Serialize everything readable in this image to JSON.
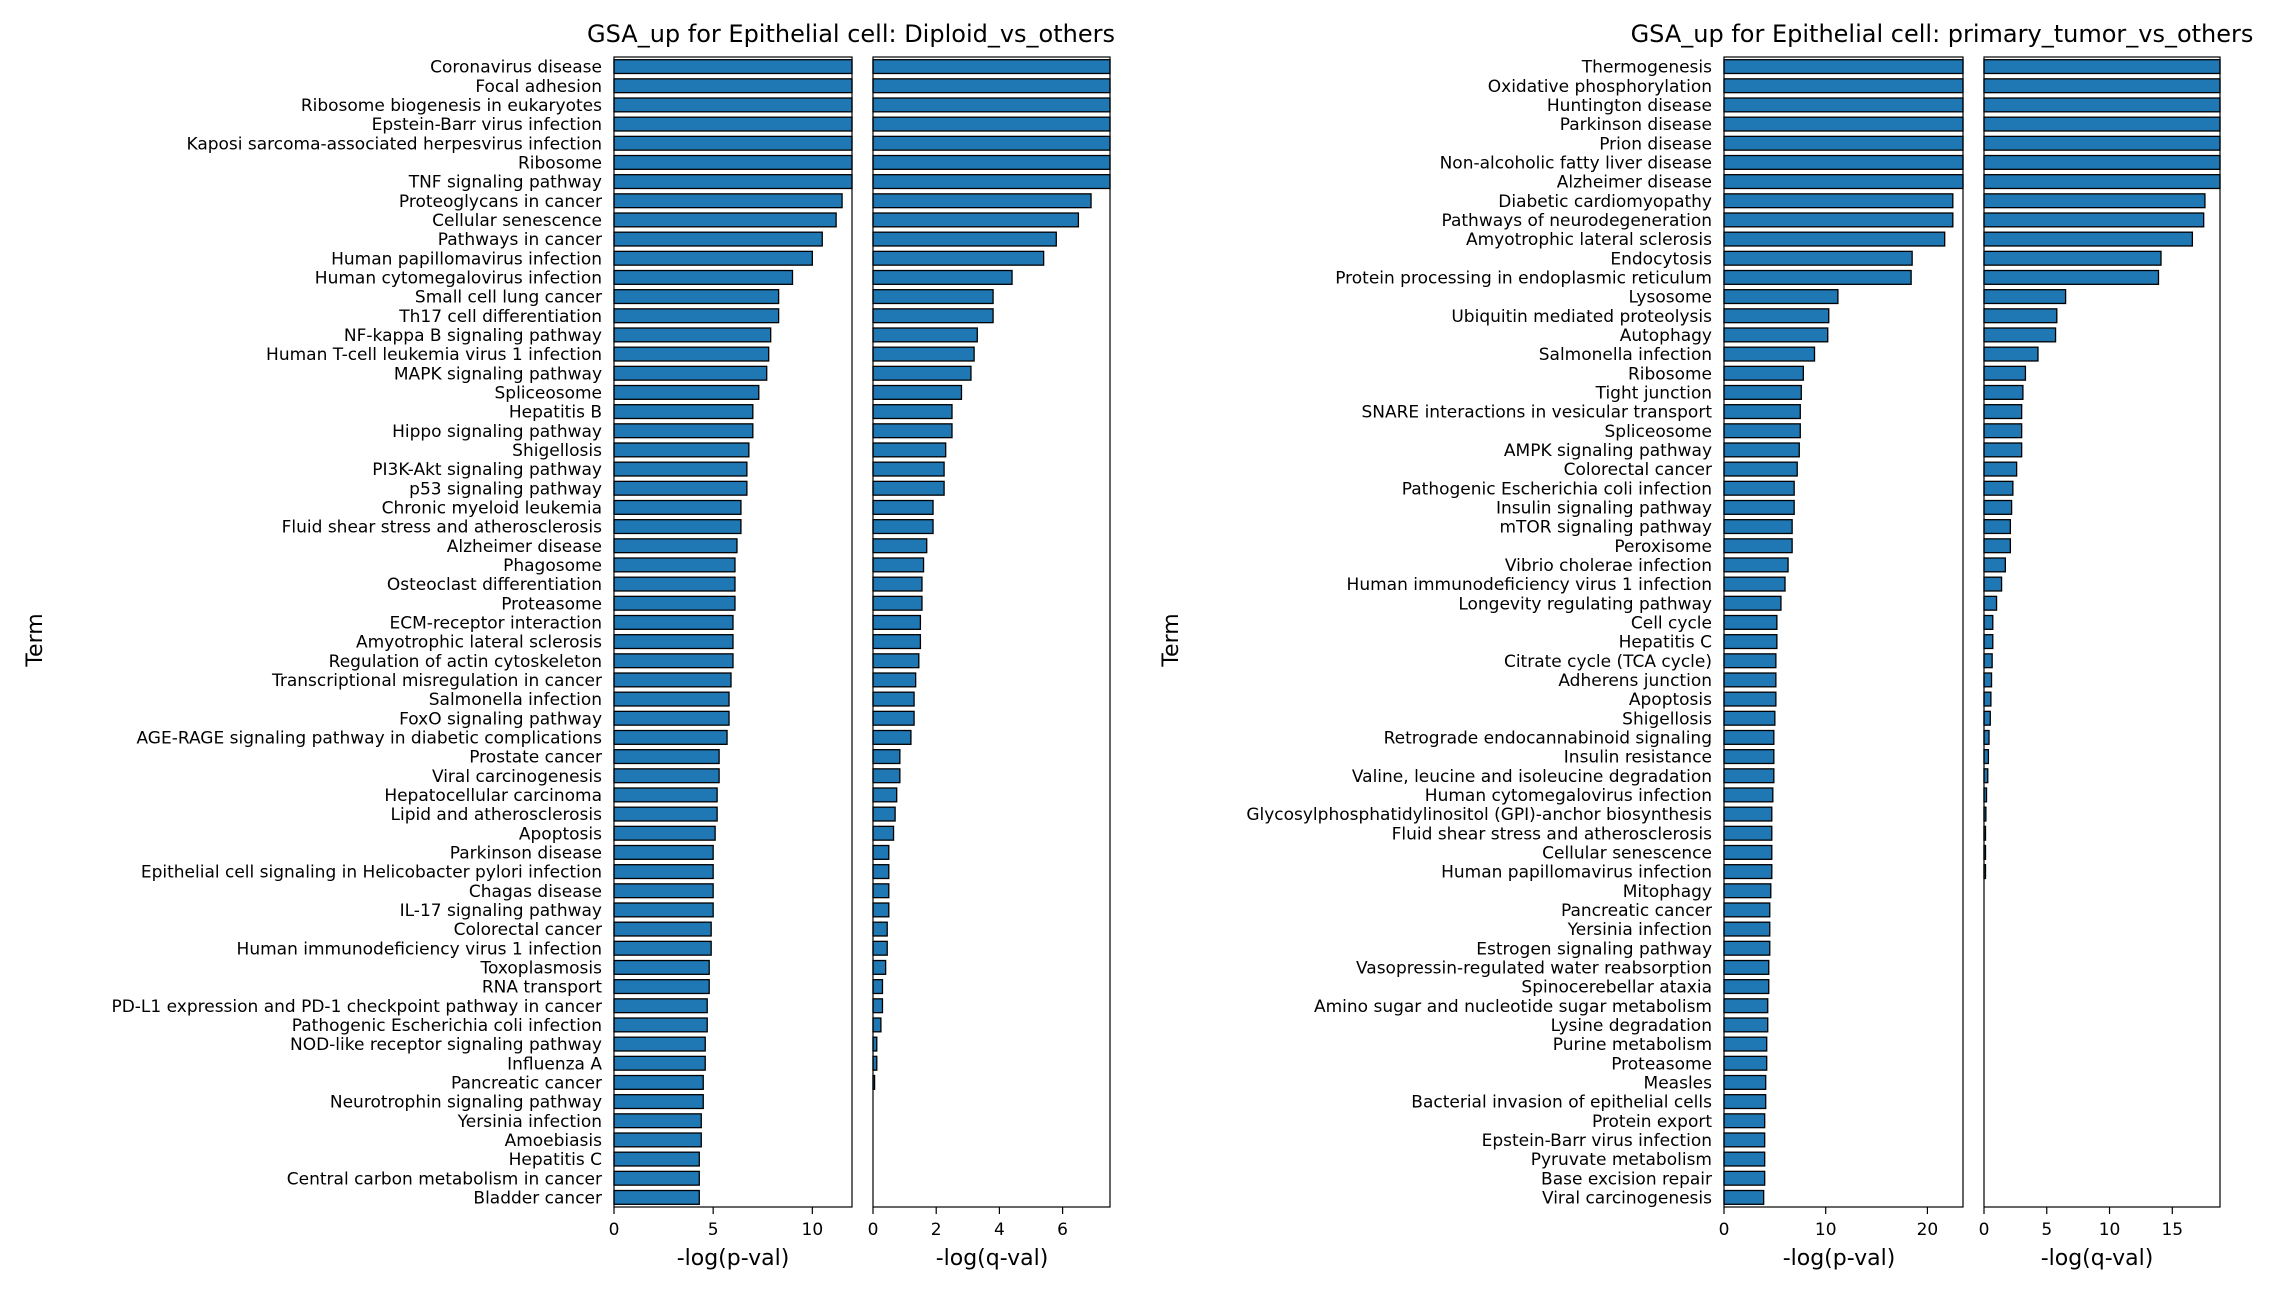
{
  "colors": {
    "bar": "#1f77b4",
    "edge": "#000000",
    "background": "#ffffff"
  },
  "chart_data": [
    {
      "type": "bar",
      "orientation": "horizontal",
      "title": "GSA_up for Epithelial cell: Diploid_vs_others",
      "ylabel": "Term",
      "categories": [
        "Coronavirus disease",
        "Focal adhesion",
        "Ribosome biogenesis in eukaryotes",
        "Epstein-Barr virus infection",
        "Kaposi sarcoma-associated herpesvirus infection",
        "Ribosome",
        "TNF signaling pathway",
        "Proteoglycans in cancer",
        "Cellular senescence",
        "Pathways in cancer",
        "Human papillomavirus infection",
        "Human cytomegalovirus infection",
        "Small cell lung cancer",
        "Th17 cell differentiation",
        "NF-kappa B signaling pathway",
        "Human T-cell leukemia virus 1 infection",
        "MAPK signaling pathway",
        "Spliceosome",
        "Hepatitis B",
        "Hippo signaling pathway",
        "Shigellosis",
        "PI3K-Akt signaling pathway",
        "p53 signaling pathway",
        "Chronic myeloid leukemia",
        "Fluid shear stress and atherosclerosis",
        "Alzheimer disease",
        "Phagosome",
        "Osteoclast differentiation",
        "Proteasome",
        "ECM-receptor interaction",
        "Amyotrophic lateral sclerosis",
        "Regulation of actin cytoskeleton",
        "Transcriptional misregulation in cancer",
        "Salmonella infection",
        "FoxO signaling pathway",
        "AGE-RAGE signaling pathway in diabetic complications",
        "Prostate cancer",
        "Viral carcinogenesis",
        "Hepatocellular carcinoma",
        "Lipid and atherosclerosis",
        "Apoptosis",
        "Parkinson disease",
        "Epithelial cell signaling in Helicobacter pylori infection",
        "Chagas disease",
        "IL-17 signaling pathway",
        "Colorectal cancer",
        "Human immunodeficiency virus 1 infection",
        "Toxoplasmosis",
        "RNA transport",
        "PD-L1 expression and PD-1 checkpoint pathway in cancer",
        "Pathogenic Escherichia coli infection",
        "NOD-like receptor signaling pathway",
        "Influenza A",
        "Pancreatic cancer",
        "Neurotrophin signaling pathway",
        "Yersinia infection",
        "Amoebiasis",
        "Hepatitis C",
        "Central carbon metabolism in cancer",
        "Bladder cancer"
      ],
      "series": [
        {
          "values": [
            12.5,
            12.5,
            12.5,
            12.5,
            12.5,
            12.5,
            12.5,
            11.5,
            11.2,
            10.5,
            10.0,
            9.0,
            8.3,
            8.3,
            7.9,
            7.8,
            7.7,
            7.3,
            7.0,
            7.0,
            6.8,
            6.7,
            6.7,
            6.4,
            6.4,
            6.2,
            6.1,
            6.1,
            6.1,
            6.0,
            6.0,
            6.0,
            5.9,
            5.8,
            5.8,
            5.7,
            5.3,
            5.3,
            5.2,
            5.2,
            5.1,
            5.0,
            5.0,
            5.0,
            5.0,
            4.9,
            4.9,
            4.8,
            4.8,
            4.7,
            4.7,
            4.6,
            4.6,
            4.5,
            4.5,
            4.4,
            4.4,
            4.3,
            4.3,
            4.3
          ],
          "xlabel": "-log(p-val)",
          "xlim": [
            0,
            12
          ],
          "xticks": [
            0,
            5,
            10
          ]
        },
        {
          "values": [
            7.5,
            7.5,
            7.5,
            7.5,
            7.5,
            7.5,
            7.5,
            6.9,
            6.5,
            5.8,
            5.4,
            4.4,
            3.8,
            3.8,
            3.3,
            3.2,
            3.1,
            2.8,
            2.5,
            2.5,
            2.3,
            2.25,
            2.25,
            1.9,
            1.9,
            1.7,
            1.6,
            1.55,
            1.55,
            1.5,
            1.5,
            1.45,
            1.35,
            1.3,
            1.3,
            1.2,
            0.85,
            0.85,
            0.75,
            0.7,
            0.65,
            0.5,
            0.5,
            0.5,
            0.5,
            0.45,
            0.45,
            0.4,
            0.3,
            0.3,
            0.25,
            0.12,
            0.12,
            0.05,
            0.0,
            0.0,
            0.0,
            0.0,
            0.0,
            0.0
          ],
          "xlabel": "-log(q-val)",
          "xlim": [
            0,
            7.5
          ],
          "xticks": [
            0,
            2,
            4,
            6
          ]
        }
      ]
    },
    {
      "type": "bar",
      "orientation": "horizontal",
      "title": "GSA_up for Epithelial cell: primary_tumor_vs_others",
      "ylabel": "Term",
      "categories": [
        "Thermogenesis",
        "Oxidative phosphorylation",
        "Huntington disease",
        "Parkinson disease",
        "Prion disease",
        "Non-alcoholic fatty liver disease",
        "Alzheimer disease",
        "Diabetic cardiomyopathy",
        "Pathways of neurodegeneration",
        "Amyotrophic lateral sclerosis",
        "Endocytosis",
        "Protein processing in endoplasmic reticulum",
        "Lysosome",
        "Ubiquitin mediated proteolysis",
        "Autophagy",
        "Salmonella infection",
        "Ribosome",
        "Tight junction",
        "SNARE interactions in vesicular transport",
        "Spliceosome",
        "AMPK signaling pathway",
        "Colorectal cancer",
        "Pathogenic Escherichia coli infection",
        "Insulin signaling pathway",
        "mTOR signaling pathway",
        "Peroxisome",
        "Vibrio cholerae infection",
        "Human immunodeficiency virus 1 infection",
        "Longevity regulating pathway",
        "Cell cycle",
        "Hepatitis C",
        "Citrate cycle (TCA cycle)",
        "Adherens junction",
        "Apoptosis",
        "Shigellosis",
        "Retrograde endocannabinoid signaling",
        "Insulin resistance",
        "Valine, leucine and isoleucine degradation",
        "Human cytomegalovirus infection",
        "Glycosylphosphatidylinositol (GPI)-anchor biosynthesis",
        "Fluid shear stress and atherosclerosis",
        "Cellular senescence",
        "Human papillomavirus infection",
        "Mitophagy",
        "Pancreatic cancer",
        "Yersinia infection",
        "Estrogen signaling pathway",
        "Vasopressin-regulated water reabsorption",
        "Spinocerebellar ataxia",
        "Amino sugar and nucleotide sugar metabolism",
        "Lysine degradation",
        "Purine metabolism",
        "Proteasome",
        "Measles",
        "Bacterial invasion of epithelial cells",
        "Protein export",
        "Epstein-Barr virus infection",
        "Pyruvate metabolism",
        "Base excision repair",
        "Viral carcinogenesis"
      ],
      "series": [
        {
          "values": [
            24,
            24,
            24,
            24,
            24,
            24,
            24,
            22.5,
            22.5,
            21.7,
            18.5,
            18.4,
            11.2,
            10.3,
            10.2,
            8.9,
            7.8,
            7.6,
            7.5,
            7.5,
            7.4,
            7.2,
            6.9,
            6.9,
            6.7,
            6.7,
            6.3,
            6.0,
            5.6,
            5.2,
            5.2,
            5.1,
            5.1,
            5.1,
            5.0,
            4.9,
            4.9,
            4.9,
            4.8,
            4.7,
            4.7,
            4.7,
            4.7,
            4.6,
            4.5,
            4.5,
            4.5,
            4.4,
            4.4,
            4.3,
            4.3,
            4.2,
            4.2,
            4.1,
            4.1,
            4.0,
            4.0,
            4.0,
            4.0,
            3.9
          ],
          "xlabel": "-log(p-val)",
          "xlim": [
            0,
            23.5
          ],
          "xticks": [
            0,
            10,
            20
          ]
        },
        {
          "values": [
            19,
            19,
            19,
            19,
            19,
            19,
            19,
            17.6,
            17.5,
            16.6,
            14.1,
            13.9,
            6.5,
            5.8,
            5.7,
            4.3,
            3.3,
            3.1,
            3.0,
            3.0,
            3.0,
            2.6,
            2.3,
            2.2,
            2.1,
            2.1,
            1.7,
            1.4,
            1.0,
            0.7,
            0.7,
            0.65,
            0.6,
            0.55,
            0.5,
            0.4,
            0.35,
            0.3,
            0.2,
            0.15,
            0.12,
            0.12,
            0.12,
            0.0,
            0.0,
            0.0,
            0.0,
            0.0,
            0.0,
            0.0,
            0.0,
            0.0,
            0.0,
            0.0,
            0.0,
            0.0,
            0.0,
            0.0,
            0.0,
            0.0
          ],
          "xlabel": "-log(q-val)",
          "xlim": [
            0,
            18.8
          ],
          "xticks": [
            0,
            5,
            10,
            15
          ]
        }
      ]
    }
  ]
}
